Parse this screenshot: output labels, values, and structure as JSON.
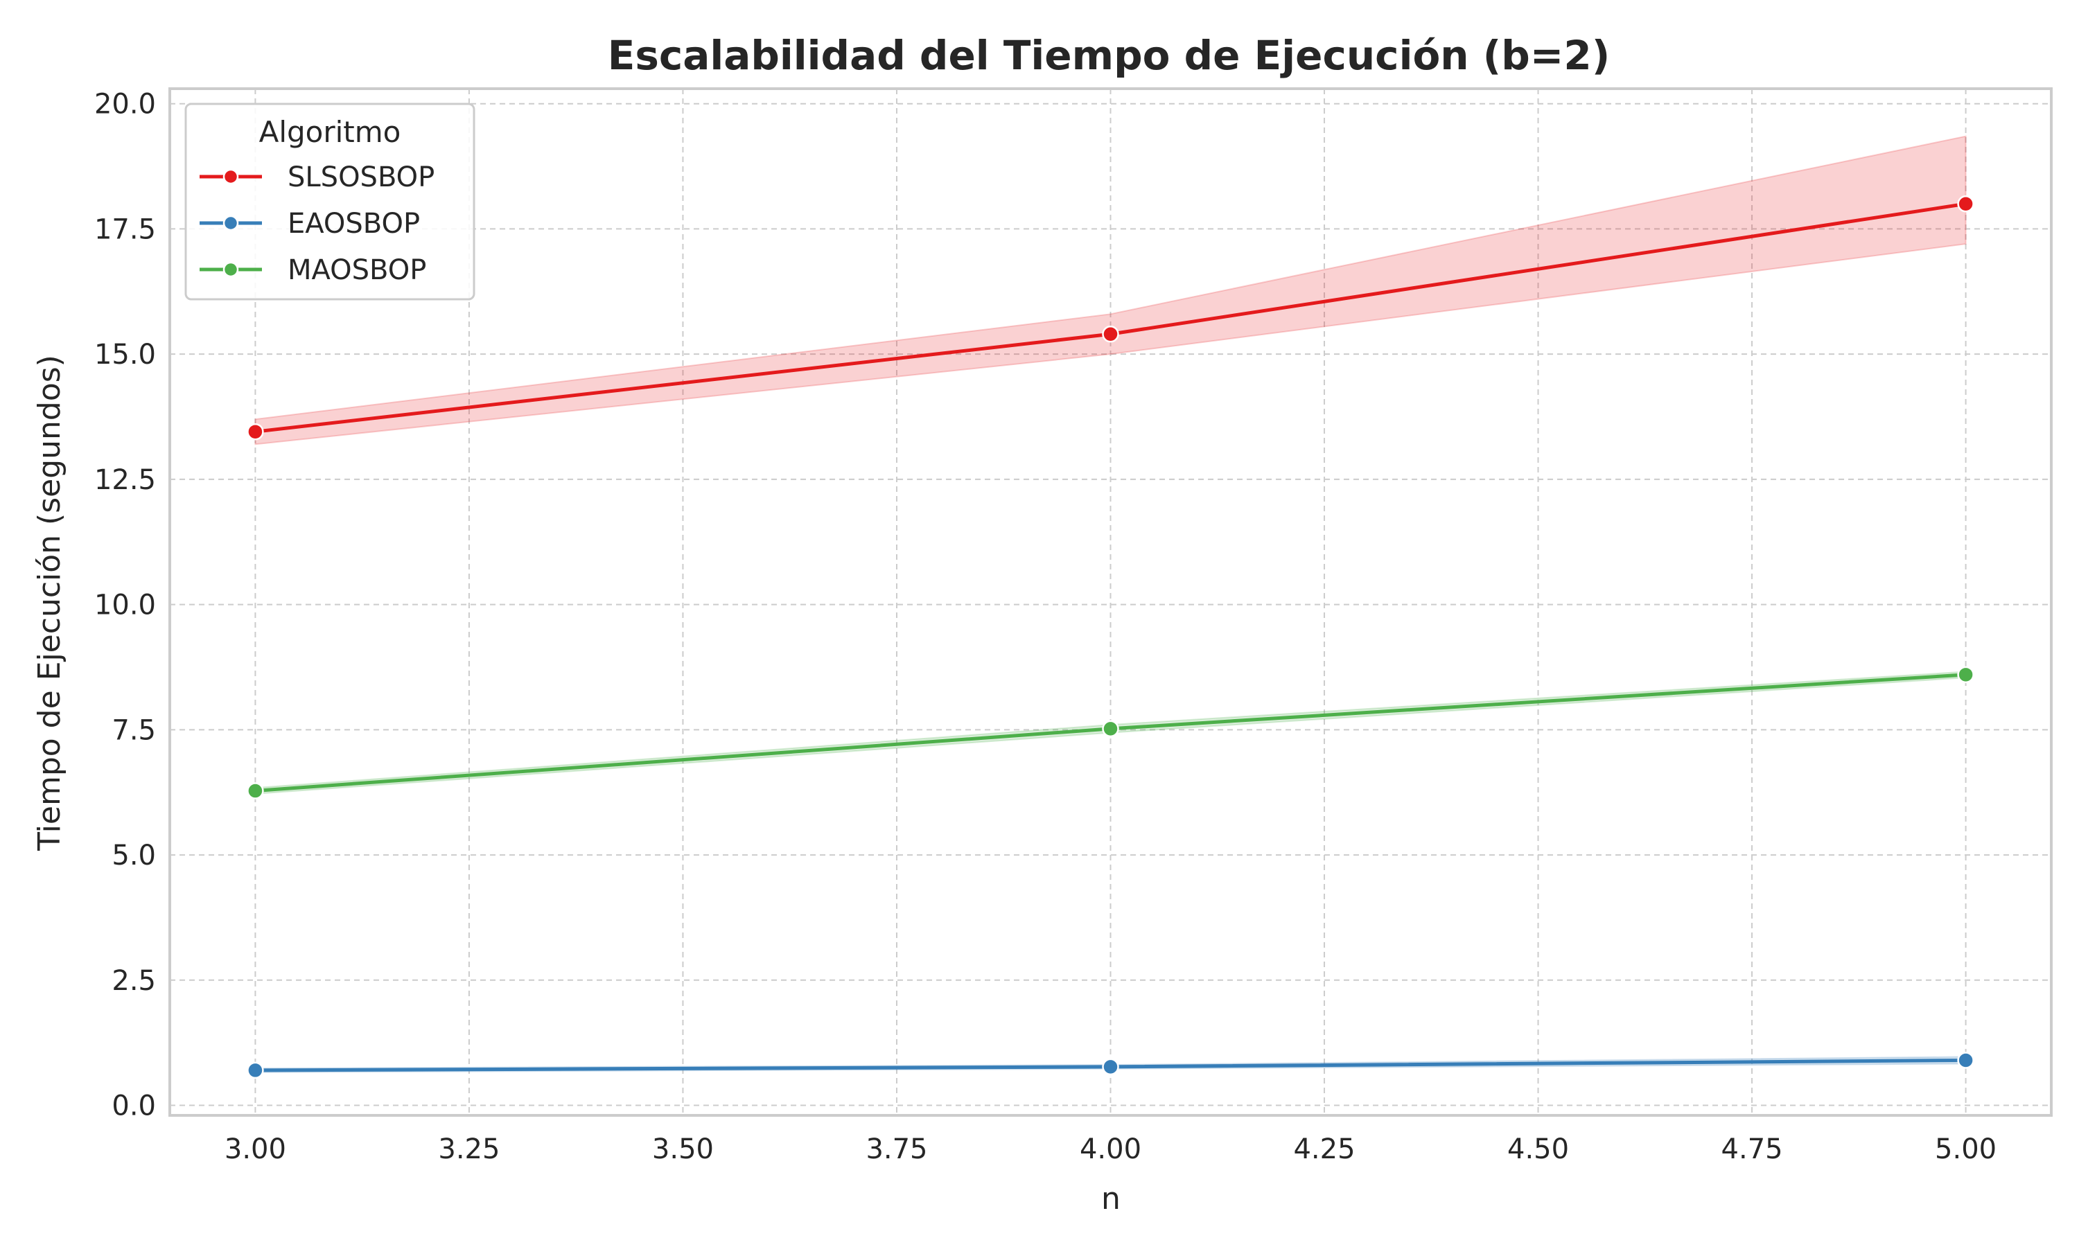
{
  "chart_data": {
    "type": "line",
    "title": "Escalabilidad del Tiempo de Ejecución (b=2)",
    "xlabel": "n",
    "ylabel": "Tiempo de Ejecución (segundos)",
    "xlim": [
      2.9,
      5.1
    ],
    "ylim": [
      -0.2,
      20.3
    ],
    "xticks": [
      3.0,
      3.25,
      3.5,
      3.75,
      4.0,
      4.25,
      4.5,
      4.75,
      5.0
    ],
    "xtick_labels": [
      "3.00",
      "3.25",
      "3.50",
      "3.75",
      "4.00",
      "4.25",
      "4.50",
      "4.75",
      "5.00"
    ],
    "yticks": [
      0,
      2.5,
      5,
      7.5,
      10,
      12.5,
      15,
      17.5,
      20
    ],
    "ytick_labels": [
      "0.0",
      "2.5",
      "5.0",
      "7.5",
      "10.0",
      "12.5",
      "15.0",
      "17.5",
      "20.0"
    ],
    "grid": true,
    "legend": {
      "title": "Algoritmo",
      "placement": "top-left"
    },
    "x": [
      3,
      4,
      5
    ],
    "series": [
      {
        "name": "SLSOSBOP",
        "color": "#e41a1c",
        "values": [
          13.45,
          15.4,
          18.0
        ],
        "ci_low": [
          13.2,
          15.0,
          17.2
        ],
        "ci_high": [
          13.7,
          15.8,
          19.35
        ]
      },
      {
        "name": "EAOSBOP",
        "color": "#377eb8",
        "values": [
          0.7,
          0.77,
          0.9
        ],
        "ci_low": [
          0.66,
          0.73,
          0.83
        ],
        "ci_high": [
          0.74,
          0.81,
          0.97
        ]
      },
      {
        "name": "MAOSBOP",
        "color": "#4daf4a",
        "values": [
          6.28,
          7.52,
          8.6
        ],
        "ci_low": [
          6.22,
          7.44,
          8.54
        ],
        "ci_high": [
          6.34,
          7.6,
          8.66
        ]
      }
    ]
  }
}
